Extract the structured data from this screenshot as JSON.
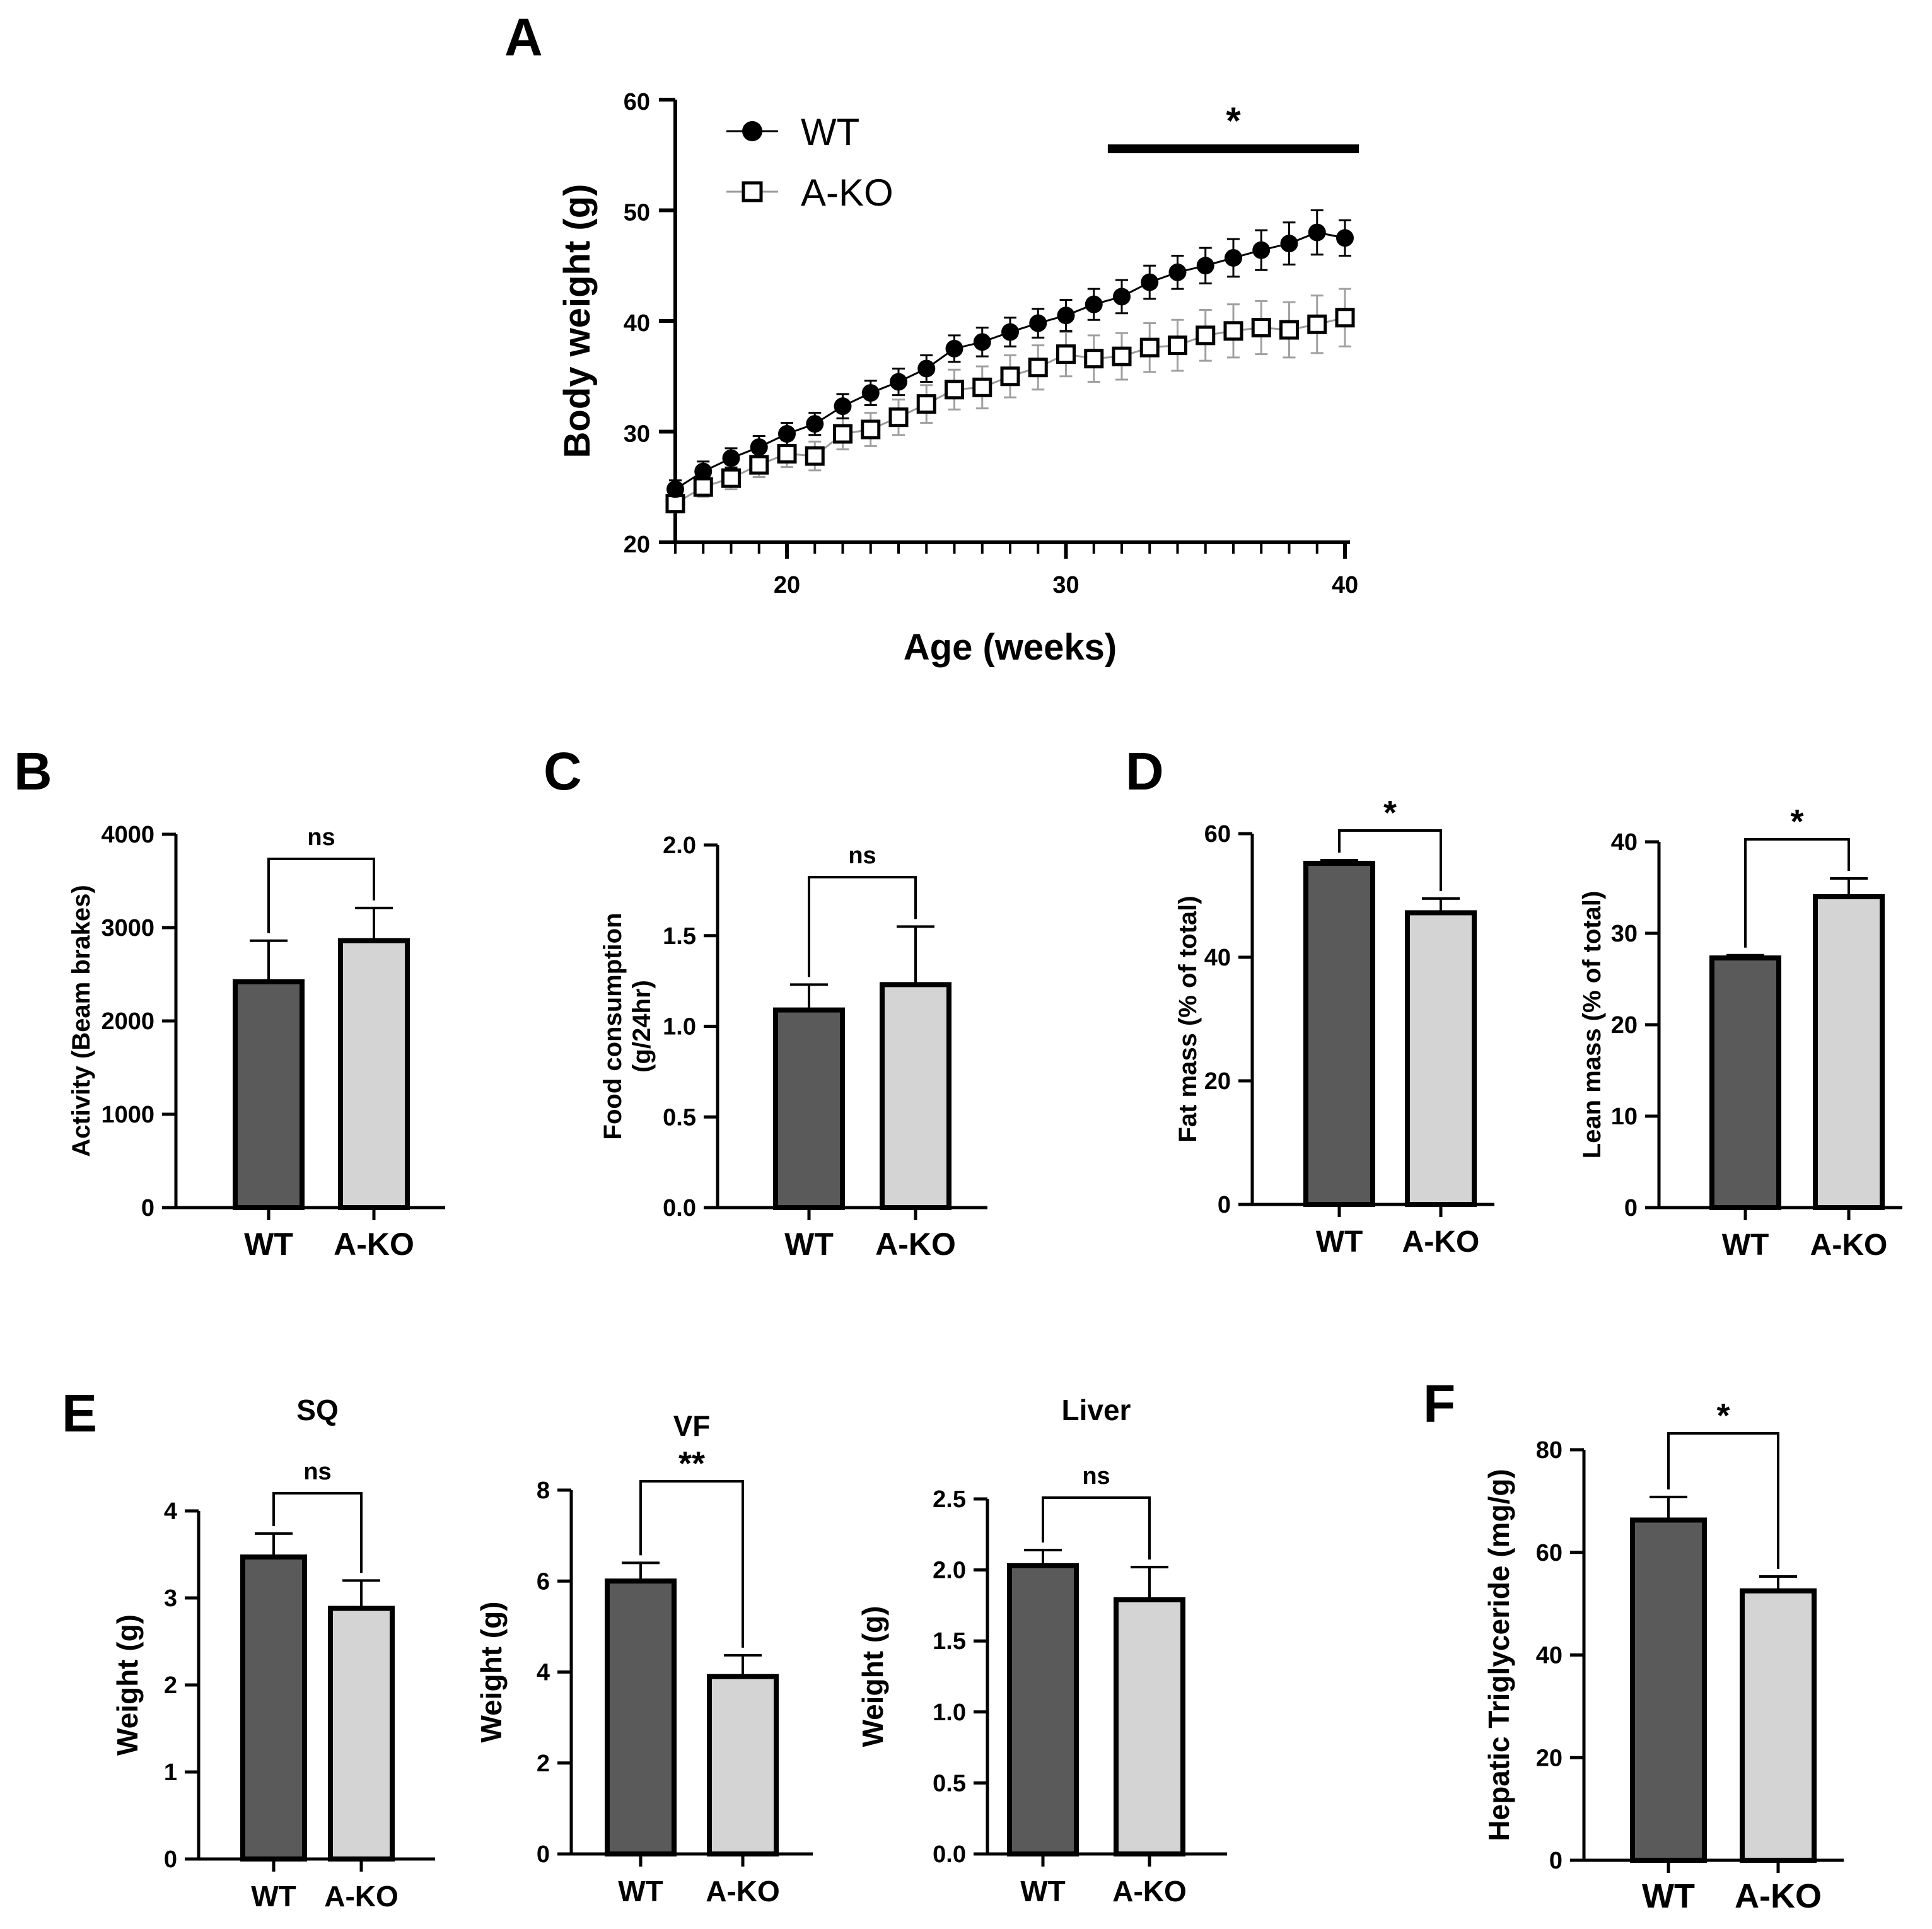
{
  "chart_data": [
    {
      "panel": "A",
      "type": "line",
      "xlabel": "Age (weeks)",
      "ylabel": "Body weight (g)",
      "xlim": [
        16,
        40
      ],
      "ylim": [
        20,
        60
      ],
      "xticks": [
        20,
        30,
        40
      ],
      "yticks": [
        20,
        30,
        40,
        50,
        60
      ],
      "x": [
        16,
        17,
        18,
        19,
        20,
        21,
        22,
        23,
        24,
        25,
        26,
        27,
        28,
        29,
        30,
        31,
        32,
        33,
        34,
        35,
        36,
        37,
        38,
        39,
        40
      ],
      "series": [
        {
          "name": "WT",
          "marker": "filled-circle",
          "color": "#000000",
          "values": [
            24.8,
            26.4,
            27.6,
            28.6,
            29.8,
            30.7,
            32.3,
            33.5,
            34.5,
            35.7,
            37.5,
            38.1,
            39.0,
            39.8,
            40.5,
            41.5,
            42.2,
            43.5,
            44.4,
            45.0,
            45.7,
            46.4,
            47.0,
            48.0,
            47.5
          ],
          "errors": [
            0.8,
            0.9,
            0.9,
            1.0,
            1.0,
            1.0,
            1.1,
            1.1,
            1.2,
            1.2,
            1.2,
            1.3,
            1.3,
            1.3,
            1.4,
            1.4,
            1.5,
            1.5,
            1.5,
            1.6,
            1.7,
            1.8,
            1.9,
            2.0,
            1.6
          ]
        },
        {
          "name": "A-KO",
          "marker": "open-square",
          "color": "#000000",
          "values": [
            23.5,
            25.0,
            25.8,
            27.0,
            28.0,
            27.8,
            29.8,
            30.2,
            31.3,
            32.5,
            33.8,
            34.0,
            35.0,
            35.8,
            37.0,
            36.6,
            36.8,
            37.6,
            37.8,
            38.7,
            39.1,
            39.4,
            39.2,
            39.7,
            40.3
          ],
          "errors": [
            0.8,
            0.9,
            1.0,
            1.1,
            1.2,
            1.3,
            1.4,
            1.5,
            1.6,
            1.7,
            1.8,
            1.9,
            1.9,
            2.0,
            2.0,
            2.1,
            2.1,
            2.2,
            2.3,
            2.3,
            2.4,
            2.4,
            2.5,
            2.6,
            2.6
          ]
        }
      ],
      "significance": {
        "label": "*",
        "from_x": 31.5,
        "to_x": 40.5
      }
    },
    {
      "panel": "B",
      "type": "bar",
      "categories": [
        "WT",
        "A-KO"
      ],
      "values": [
        2420,
        2860
      ],
      "errors": [
        440,
        350
      ],
      "ylabel": "Activity (Beam brakes)",
      "ylim": [
        0,
        4000
      ],
      "yticks": [
        0,
        1000,
        2000,
        3000,
        4000
      ],
      "significance": "ns"
    },
    {
      "panel": "C",
      "type": "bar",
      "categories": [
        "WT",
        "A-KO"
      ],
      "values": [
        1.09,
        1.23
      ],
      "errors": [
        0.14,
        0.32
      ],
      "ylabel": "Food consumption (g/24hr)",
      "ylim": [
        0,
        2.0
      ],
      "yticks": [
        "0.0",
        "0.5",
        "1.0",
        "1.5",
        "2.0"
      ],
      "significance": "ns"
    },
    {
      "panel": "D",
      "type": "bar",
      "categories": [
        "WT",
        "A-KO"
      ],
      "values": [
        55.2,
        47.2
      ],
      "errors": [
        0.5,
        2.3
      ],
      "ylabel": "Fat mass (% of total)",
      "ylim": [
        0,
        60
      ],
      "yticks": [
        0,
        20,
        40,
        60
      ],
      "significance": "*"
    },
    {
      "panel": "D2",
      "type": "bar",
      "categories": [
        "WT",
        "A-KO"
      ],
      "values": [
        27.3,
        34.0
      ],
      "errors": [
        0.3,
        2.0
      ],
      "ylabel": "Lean mass (% of total)",
      "ylim": [
        0,
        40
      ],
      "yticks": [
        0,
        10,
        20,
        30,
        40
      ],
      "significance": "*"
    },
    {
      "panel": "E",
      "type": "bar",
      "title": "SQ",
      "categories": [
        "WT",
        "A-KO"
      ],
      "values": [
        3.47,
        2.88
      ],
      "errors": [
        0.27,
        0.32
      ],
      "ylabel": "Weight (g)",
      "ylim": [
        0,
        4
      ],
      "yticks": [
        0,
        1,
        2,
        3,
        4
      ],
      "significance": "ns"
    },
    {
      "panel": "E2",
      "type": "bar",
      "title": "VF",
      "categories": [
        "WT",
        "A-KO"
      ],
      "values": [
        6.0,
        3.9
      ],
      "errors": [
        0.4,
        0.47
      ],
      "ylabel": "Weight (g)",
      "ylim": [
        0,
        8
      ],
      "yticks": [
        0,
        2,
        4,
        6,
        8
      ],
      "significance": "**"
    },
    {
      "panel": "E3",
      "type": "bar",
      "title": "Liver",
      "categories": [
        "WT",
        "A-KO"
      ],
      "values": [
        2.03,
        1.79
      ],
      "errors": [
        0.11,
        0.23
      ],
      "ylabel": "Weight (g)",
      "ylim": [
        0,
        2.5
      ],
      "yticks": [
        "0.0",
        "0.5",
        "1.0",
        "1.5",
        "2.0",
        "2.5"
      ],
      "significance": "ns"
    },
    {
      "panel": "F",
      "type": "bar",
      "categories": [
        "WT",
        "A-KO"
      ],
      "values": [
        66.3,
        52.5
      ],
      "errors": [
        4.5,
        2.8
      ],
      "ylabel": "Hepatic Triglyceride (mg/g)",
      "ylim": [
        0,
        80
      ],
      "yticks": [
        0,
        20,
        40,
        60,
        80
      ],
      "significance": "*"
    }
  ],
  "panel_labels": [
    "A",
    "B",
    "C",
    "D",
    "E",
    "F"
  ],
  "colors": {
    "wt_bar": "#5a5a5a",
    "ko_bar": "#d4d4d4",
    "ko_errorbar": "#a0a0a0"
  }
}
